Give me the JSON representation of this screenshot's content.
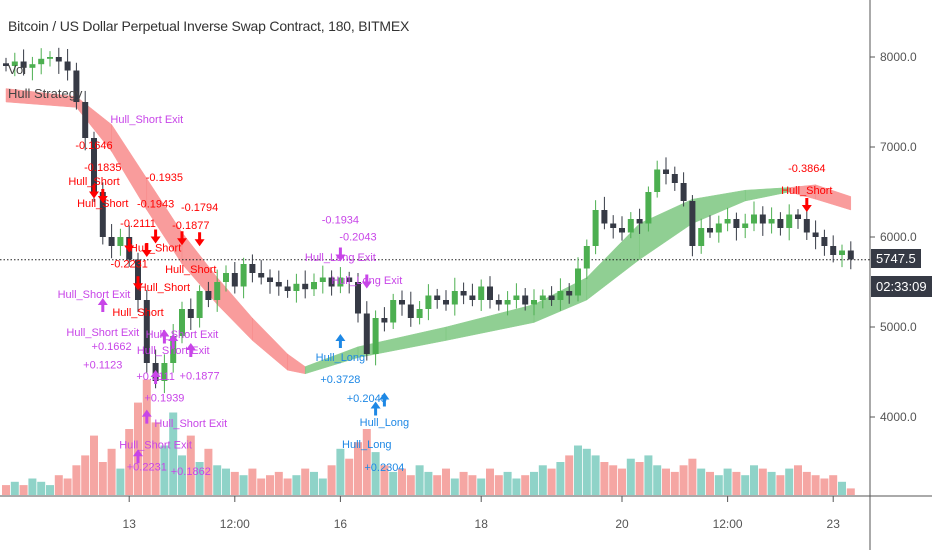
{
  "header": {
    "title": "Bitcoin / US Dollar Perpetual Inverse Swap Contract, 180, BITMEX",
    "legend_vol": "Vol",
    "legend_strategy": "Hull Strategy"
  },
  "price_axis": {
    "ticks": [
      "8000.0",
      "7000.0",
      "6000.0",
      "5000.0",
      "4000.0"
    ],
    "last_price": "5747.5",
    "countdown": "02:33:09"
  },
  "colors": {
    "up": "#4caf50",
    "down": "#363a45",
    "vol_up": "#8fd3c8",
    "vol_down": "#f5a6a3",
    "hull_bear": "#f77c7c",
    "hull_bull": "#6cc06f",
    "short": "#ff0000",
    "exit": "#c845e8",
    "long": "#1e88e5"
  },
  "chart_data": {
    "type": "candlestick",
    "title": "Bitcoin / US Dollar Perpetual Inverse Swap Contract, 180, BITMEX",
    "ylim": [
      3200,
      8600
    ],
    "y_ticks": [
      8000,
      7000,
      6000,
      5000,
      4000
    ],
    "x_ticks": [
      {
        "bar": 14,
        "label": "13"
      },
      {
        "bar": 26,
        "label": "12:00"
      },
      {
        "bar": 38,
        "label": "16"
      },
      {
        "bar": 54,
        "label": "18"
      },
      {
        "bar": 70,
        "label": "20"
      },
      {
        "bar": 82,
        "label": "12:00"
      },
      {
        "bar": 94,
        "label": "23"
      }
    ],
    "closes": [
      7900,
      7950,
      7880,
      7920,
      7980,
      8000,
      7950,
      7850,
      7500,
      7100,
      6500,
      6000,
      5900,
      6000,
      5750,
      5300,
      4600,
      4400,
      4600,
      4900,
      5200,
      5100,
      5400,
      5300,
      5500,
      5600,
      5450,
      5700,
      5600,
      5550,
      5500,
      5450,
      5400,
      5480,
      5420,
      5500,
      5550,
      5450,
      5550,
      5500,
      5150,
      4700,
      5100,
      5050,
      5300,
      5250,
      5100,
      5200,
      5350,
      5300,
      5250,
      5400,
      5350,
      5300,
      5450,
      5300,
      5250,
      5300,
      5350,
      5250,
      5300,
      5350,
      5300,
      5400,
      5350,
      5650,
      5900,
      6300,
      6150,
      6100,
      6050,
      6200,
      6150,
      6500,
      6750,
      6700,
      6600,
      6400,
      5900,
      6100,
      6050,
      6150,
      6200,
      6100,
      6150,
      6250,
      6150,
      6200,
      6100,
      6250,
      6200,
      6050,
      6000,
      5900,
      5800,
      5850,
      5750
    ],
    "volume": [
      3,
      4,
      3,
      5,
      4,
      3,
      6,
      5,
      9,
      12,
      18,
      10,
      14,
      8,
      20,
      28,
      35,
      22,
      15,
      25,
      12,
      18,
      10,
      14,
      9,
      8,
      7,
      6,
      8,
      5,
      6,
      7,
      5,
      6,
      8,
      7,
      5,
      9,
      14,
      11,
      16,
      20,
      13,
      9,
      7,
      8,
      6,
      9,
      7,
      6,
      8,
      5,
      7,
      6,
      5,
      8,
      6,
      7,
      5,
      6,
      7,
      9,
      8,
      10,
      12,
      15,
      14,
      12,
      10,
      9,
      8,
      11,
      10,
      12,
      9,
      8,
      7,
      9,
      11,
      8,
      7,
      6,
      8,
      7,
      6,
      9,
      8,
      7,
      6,
      8,
      9,
      7,
      6,
      5,
      6,
      4,
      2
    ],
    "hull_band": [
      {
        "bar": 0,
        "upper": 7650,
        "lower": 7500,
        "trend": "bear"
      },
      {
        "bar": 8,
        "upper": 7560,
        "lower": 7440,
        "trend": "bear"
      },
      {
        "bar": 12,
        "upper": 7250,
        "lower": 6950,
        "trend": "bear"
      },
      {
        "bar": 16,
        "upper": 6650,
        "lower": 6300,
        "trend": "bear"
      },
      {
        "bar": 20,
        "upper": 6050,
        "lower": 5700,
        "trend": "bear"
      },
      {
        "bar": 24,
        "upper": 5550,
        "lower": 5250,
        "trend": "bear"
      },
      {
        "bar": 28,
        "upper": 5100,
        "lower": 4850,
        "trend": "bear"
      },
      {
        "bar": 32,
        "upper": 4700,
        "lower": 4520,
        "trend": "bear"
      },
      {
        "bar": 34,
        "upper": 4560,
        "lower": 4480,
        "trend": "bear"
      },
      {
        "bar": 40,
        "upper": 4780,
        "lower": 4660,
        "trend": "bull"
      },
      {
        "bar": 50,
        "upper": 5000,
        "lower": 4850,
        "trend": "bull"
      },
      {
        "bar": 60,
        "upper": 5250,
        "lower": 5050,
        "trend": "bull"
      },
      {
        "bar": 66,
        "upper": 5550,
        "lower": 5300,
        "trend": "bull"
      },
      {
        "bar": 72,
        "upper": 6150,
        "lower": 5750,
        "trend": "bull"
      },
      {
        "bar": 78,
        "upper": 6420,
        "lower": 6150,
        "trend": "bull"
      },
      {
        "bar": 84,
        "upper": 6520,
        "lower": 6400,
        "trend": "bull"
      },
      {
        "bar": 89,
        "upper": 6550,
        "lower": 6500,
        "trend": "bull"
      },
      {
        "bar": 92,
        "upper": 6580,
        "lower": 6420,
        "trend": "bear"
      },
      {
        "bar": 96,
        "upper": 6450,
        "lower": 6300,
        "trend": "bear"
      }
    ],
    "annotations": [
      {
        "text": "-0.1646",
        "bar": 10,
        "price": 6980,
        "kind": "short"
      },
      {
        "text": "-0.1835",
        "bar": 11,
        "price": 6880,
        "kind": "short"
      },
      {
        "text": "Hull_Short",
        "bar": 10,
        "price": 6720,
        "kind": "short"
      },
      {
        "text": "Hull_Short",
        "bar": 11,
        "price": 6620,
        "kind": "short"
      },
      {
        "text": "-0.1935",
        "bar": 18,
        "price": 6620,
        "kind": "short"
      },
      {
        "text": "-0.1943",
        "bar": 17,
        "price": 6330,
        "kind": "short"
      },
      {
        "text": "-0.1877",
        "bar": 21,
        "price": 6380,
        "kind": "short"
      },
      {
        "text": "-0.1794",
        "bar": 22,
        "price": 6290,
        "kind": "short"
      },
      {
        "text": "Hull_Short",
        "bar": 17,
        "price": 6130,
        "kind": "short"
      },
      {
        "text": "Hull_Short",
        "bar": 21,
        "price": 6180,
        "kind": "short"
      },
      {
        "text": "-0.2111",
        "bar": 15,
        "price": 6110,
        "kind": "short"
      },
      {
        "text": "-0.2231",
        "bar": 14,
        "price": 5950,
        "kind": "short"
      },
      {
        "text": "Hull_Short",
        "bar": 18,
        "price": 5980,
        "kind": "short"
      },
      {
        "text": "Hull_Short",
        "bar": 15,
        "price": 5700,
        "kind": "short"
      },
      {
        "text": "-0.3864",
        "bar": 91,
        "price": 6720,
        "kind": "short"
      },
      {
        "text": "Hull_Short",
        "bar": 91,
        "price": 6480,
        "kind": "short"
      },
      {
        "text": "Hull_Short Exit",
        "bar": 11,
        "price": 5480,
        "kind": "exit"
      },
      {
        "text": "Hull_Short Exit",
        "bar": 10,
        "price": 5180,
        "kind": "exit"
      },
      {
        "text": "+0.1662",
        "bar": 12,
        "price": 5180,
        "kind": "exit"
      },
      {
        "text": "+0.1123",
        "bar": 11,
        "price": 4970,
        "kind": "exit"
      },
      {
        "text": "Hull_Short Exit",
        "bar": 20,
        "price": 4880,
        "kind": "exit"
      },
      {
        "text": "Hull_Short Exit",
        "bar": 19,
        "price": 4700,
        "kind": "exit"
      },
      {
        "text": "+0.1877",
        "bar": 22,
        "price": 4560,
        "kind": "exit"
      },
      {
        "text": "+0.1939",
        "bar": 18,
        "price": 4460,
        "kind": "exit"
      },
      {
        "text": "Hull_Short Exit",
        "bar": 21,
        "price": 4320,
        "kind": "exit"
      },
      {
        "text": "Hull_Short Exit",
        "bar": 17,
        "price": 4230,
        "kind": "exit"
      },
      {
        "text": "+0.1862",
        "bar": 21,
        "price": 4080,
        "kind": "exit"
      },
      {
        "text": "+0.2111",
        "bar": 17,
        "price": 3980,
        "kind": "exit"
      },
      {
        "text": "Hull_Short Exit",
        "bar": 16,
        "price": 3800,
        "kind": "exit"
      },
      {
        "text": "+0.2231",
        "bar": 16,
        "price": 3550,
        "kind": "exit"
      },
      {
        "text": "-0.1934",
        "bar": 38,
        "price": 6150,
        "kind": "exit"
      },
      {
        "text": "-0.2043",
        "bar": 40,
        "price": 5960,
        "kind": "exit"
      },
      {
        "text": "Hull_Long Exit",
        "bar": 38,
        "price": 5880,
        "kind": "exit"
      },
      {
        "text": "Hull_Long Exit",
        "bar": 41,
        "price": 5620,
        "kind": "exit"
      },
      {
        "text": "Hull_Long",
        "bar": 38,
        "price": 4620,
        "kind": "long"
      },
      {
        "text": "+0.3728",
        "bar": 38,
        "price": 4380,
        "kind": "long"
      },
      {
        "text": "Hull_Long",
        "bar": 43,
        "price": 3900,
        "kind": "long"
      },
      {
        "text": "Hull_Long",
        "bar": 41,
        "price": 3800,
        "kind": "long"
      },
      {
        "text": "+0.2304",
        "bar": 43,
        "price": 3690,
        "kind": "long"
      },
      {
        "text": "+0.2043",
        "bar": 41,
        "price": 3590,
        "kind": "long"
      }
    ],
    "arrows": [
      {
        "bar": 10,
        "price": 6450,
        "dir": "down",
        "kind": "short"
      },
      {
        "bar": 11,
        "price": 6400,
        "dir": "down",
        "kind": "short"
      },
      {
        "bar": 14,
        "price": 5850,
        "dir": "down",
        "kind": "short"
      },
      {
        "bar": 16,
        "price": 5800,
        "dir": "down",
        "kind": "short"
      },
      {
        "bar": 17,
        "price": 5950,
        "dir": "down",
        "kind": "short"
      },
      {
        "bar": 20,
        "price": 5930,
        "dir": "down",
        "kind": "short"
      },
      {
        "bar": 22,
        "price": 5920,
        "dir": "down",
        "kind": "short"
      },
      {
        "bar": 15,
        "price": 5430,
        "dir": "down",
        "kind": "short"
      },
      {
        "bar": 91,
        "price": 6300,
        "dir": "down",
        "kind": "short"
      },
      {
        "bar": 11,
        "price": 5300,
        "dir": "up",
        "kind": "exit"
      },
      {
        "bar": 18,
        "price": 4950,
        "dir": "up",
        "kind": "exit"
      },
      {
        "bar": 19,
        "price": 4900,
        "dir": "up",
        "kind": "exit"
      },
      {
        "bar": 21,
        "price": 4800,
        "dir": "up",
        "kind": "exit"
      },
      {
        "bar": 17,
        "price": 4500,
        "dir": "up",
        "kind": "exit"
      },
      {
        "bar": 16,
        "price": 4060,
        "dir": "up",
        "kind": "exit"
      },
      {
        "bar": 15,
        "price": 3620,
        "dir": "up",
        "kind": "exit"
      },
      {
        "bar": 38,
        "price": 5750,
        "dir": "down",
        "kind": "exit"
      },
      {
        "bar": 41,
        "price": 5450,
        "dir": "down",
        "kind": "exit"
      },
      {
        "bar": 38,
        "price": 4900,
        "dir": "up",
        "kind": "long"
      },
      {
        "bar": 42,
        "price": 4150,
        "dir": "up",
        "kind": "long"
      },
      {
        "bar": 43,
        "price": 4250,
        "dir": "up",
        "kind": "long"
      }
    ]
  }
}
